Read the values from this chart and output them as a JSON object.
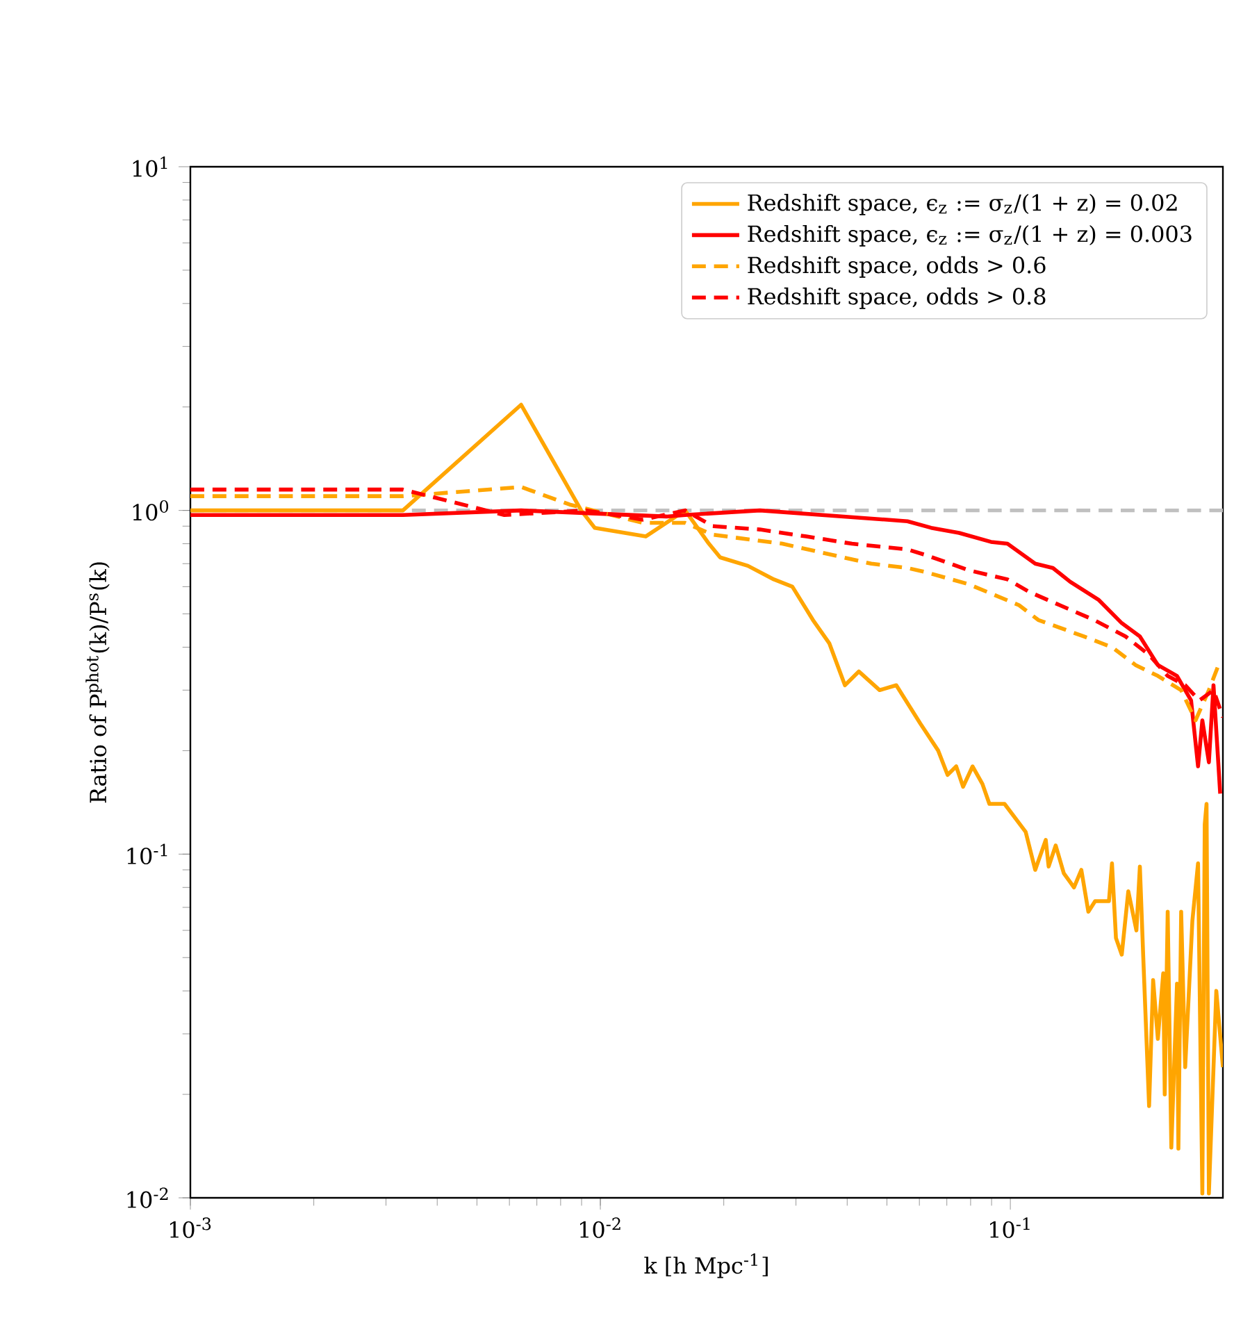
{
  "chart_data": {
    "type": "line",
    "xlabel": "k [h Mpc$^{-1}$]",
    "ylabel": "Ratio of P$^{phot}$(k)/P$^{s}$(k)",
    "log": "xy",
    "legend": "top right",
    "xlim": [
      0.001,
      0.33
    ],
    "ylim": [
      0.01,
      10
    ],
    "xticks": [
      {
        "value": 0.001,
        "label": "10$^{-3}$"
      },
      {
        "value": 0.01,
        "label": "10$^{-2}$"
      },
      {
        "value": 0.1,
        "label": "10$^{-1}$"
      }
    ],
    "yticks": [
      {
        "value": 0.01,
        "label": "10$^{-2}$"
      },
      {
        "value": 0.1,
        "label": "10$^{-1}$"
      },
      {
        "value": 1,
        "label": "10$^{0}$"
      },
      {
        "value": 10,
        "label": "10$^{1}$"
      }
    ],
    "ref_lines": [
      {
        "axis": "y",
        "value": 1,
        "label": null,
        "color": "#c0c0c0",
        "line_style": "dashed"
      }
    ],
    "series": [
      {
        "name": "Redshift space, ϵ$_{z}$ := σ$_{z}$/(1 + z) = 0.02",
        "color": "#ffa500",
        "line_style": "solid",
        "x": [
          0.001,
          0.0033,
          0.00641,
          0.00898,
          0.00969,
          0.0129,
          0.0161,
          0.0184,
          0.0196,
          0.0229,
          0.0265,
          0.0294,
          0.033,
          0.0362,
          0.0395,
          0.0427,
          0.048,
          0.0527,
          0.0603,
          0.0667,
          0.0703,
          0.0738,
          0.0767,
          0.0809,
          0.0855,
          0.0889,
          0.0968,
          0.109,
          0.115,
          0.122,
          0.124,
          0.129,
          0.135,
          0.143,
          0.149,
          0.155,
          0.161,
          0.174,
          0.177,
          0.181,
          0.187,
          0.194,
          0.203,
          0.207,
          0.211,
          0.218,
          0.223,
          0.229,
          0.236,
          0.238,
          0.242,
          0.247,
          0.255,
          0.257,
          0.261,
          0.267,
          0.278,
          0.287,
          0.294,
          0.298,
          0.301,
          0.305,
          0.318,
          0.33
        ],
        "values": [
          1.0,
          1.0,
          2.03,
          1.0,
          0.89,
          0.84,
          1.0,
          0.8,
          0.73,
          0.69,
          0.63,
          0.6,
          0.48,
          0.41,
          0.31,
          0.34,
          0.3,
          0.31,
          0.24,
          0.2,
          0.17,
          0.18,
          0.157,
          0.18,
          0.16,
          0.14,
          0.14,
          0.116,
          0.09,
          0.11,
          0.092,
          0.106,
          0.088,
          0.08,
          0.09,
          0.068,
          0.073,
          0.073,
          0.094,
          0.057,
          0.051,
          0.078,
          0.06,
          0.092,
          0.05,
          0.0185,
          0.043,
          0.029,
          0.045,
          0.02,
          0.068,
          0.014,
          0.042,
          0.0139,
          0.068,
          0.024,
          0.064,
          0.094,
          0.0103,
          0.122,
          0.14,
          0.0103,
          0.04,
          0.024
        ]
      },
      {
        "name": "Redshift space, ϵ$_{z}$ := σ$_{z}$/(1 + z) = 0.003",
        "color": "#ff0000",
        "line_style": "solid",
        "x": [
          0.001,
          0.0033,
          0.00641,
          0.0145,
          0.0161,
          0.0245,
          0.0392,
          0.0561,
          0.0641,
          0.075,
          0.0897,
          0.0984,
          0.115,
          0.127,
          0.14,
          0.164,
          0.187,
          0.207,
          0.229,
          0.255,
          0.276,
          0.287,
          0.294,
          0.305,
          0.313,
          0.325
        ],
        "values": [
          0.97,
          0.97,
          1.0,
          0.96,
          0.97,
          1.0,
          0.96,
          0.93,
          0.89,
          0.86,
          0.81,
          0.8,
          0.7,
          0.68,
          0.62,
          0.55,
          0.47,
          0.43,
          0.355,
          0.33,
          0.28,
          0.18,
          0.245,
          0.185,
          0.31,
          0.15
        ]
      },
      {
        "name": "Redshift space, odds > 0.6",
        "color": "#ffa500",
        "line_style": "dashed",
        "x": [
          0.001,
          0.0033,
          0.00641,
          0.00842,
          0.0127,
          0.0161,
          0.0188,
          0.0278,
          0.0458,
          0.0561,
          0.0626,
          0.0791,
          0.105,
          0.117,
          0.151,
          0.177,
          0.202,
          0.229,
          0.261,
          0.283,
          0.305,
          0.322
        ],
        "values": [
          1.1,
          1.1,
          1.17,
          1.04,
          0.92,
          0.92,
          0.85,
          0.8,
          0.7,
          0.68,
          0.66,
          0.61,
          0.53,
          0.48,
          0.43,
          0.4,
          0.355,
          0.33,
          0.3,
          0.245,
          0.3,
          0.355
        ]
      },
      {
        "name": "Redshift space, odds > 0.8",
        "color": "#ff0000",
        "line_style": "dashed",
        "x": [
          0.001,
          0.0033,
          0.00583,
          0.00925,
          0.0127,
          0.0161,
          0.0188,
          0.0245,
          0.0318,
          0.0411,
          0.0561,
          0.0626,
          0.0791,
          0.0984,
          0.111,
          0.132,
          0.16,
          0.191,
          0.218,
          0.242,
          0.267,
          0.289,
          0.313,
          0.33
        ],
        "values": [
          1.15,
          1.15,
          0.97,
          1.0,
          0.94,
          1.0,
          0.9,
          0.88,
          0.84,
          0.8,
          0.77,
          0.74,
          0.67,
          0.63,
          0.58,
          0.53,
          0.48,
          0.43,
          0.38,
          0.33,
          0.31,
          0.28,
          0.3,
          0.25
        ]
      }
    ]
  }
}
